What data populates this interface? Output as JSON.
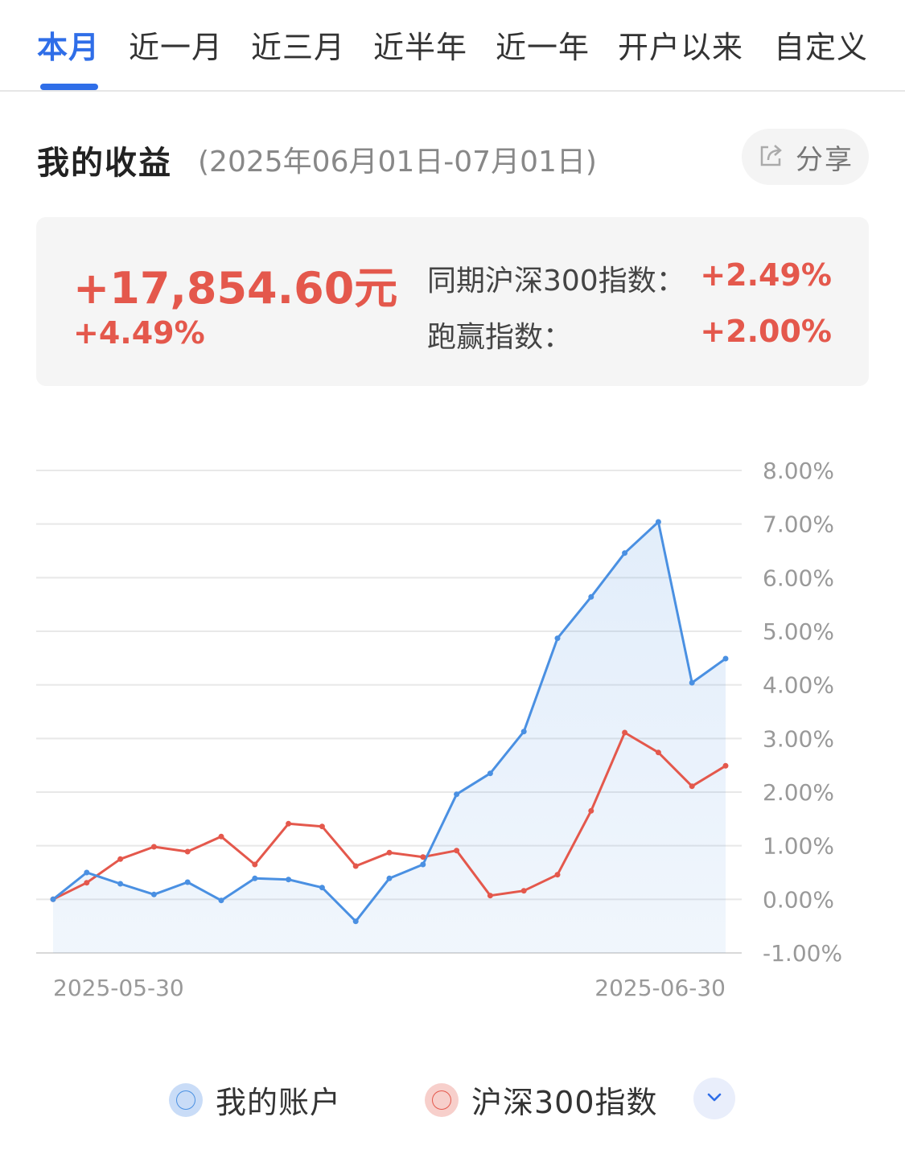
{
  "tabs": [
    {
      "label": "本月",
      "active": true
    },
    {
      "label": "近一月",
      "active": false
    },
    {
      "label": "近三月",
      "active": false
    },
    {
      "label": "近半年",
      "active": false
    },
    {
      "label": "近一年",
      "active": false
    },
    {
      "label": "开户以来",
      "active": false
    },
    {
      "label": "自定义",
      "active": false
    }
  ],
  "section": {
    "title": "我的收益",
    "date_range": "(2025年06月01日-07月01日)",
    "share_label": "分享",
    "share_icon": "share-icon"
  },
  "summary": {
    "profit_amount": "+17,854.60元",
    "profit_rate": "+4.49%",
    "index_label": "同期沪深300指数：",
    "index_value": "+2.49%",
    "outperform_label": "跑赢指数：",
    "outperform_value": "+2.00%"
  },
  "colors": {
    "accent": "#2f6ee8",
    "positive": "#e4584c",
    "account_line": "#4a90e2",
    "index_line": "#e4584c"
  },
  "chart_data": {
    "type": "line",
    "x_start_label": "2025-05-30",
    "x_end_label": "2025-06-30",
    "y_ticks": [
      "8.00%",
      "7.00%",
      "6.00%",
      "5.00%",
      "4.00%",
      "3.00%",
      "2.00%",
      "1.00%",
      "0.00%",
      "-1.00%"
    ],
    "ylim": [
      -1,
      8
    ],
    "series": [
      {
        "name": "我的账户",
        "color": "#4a90e2",
        "values": [
          0.0,
          0.5,
          0.29,
          0.09,
          0.32,
          -0.02,
          0.39,
          0.37,
          0.22,
          -0.41,
          0.39,
          0.65,
          1.96,
          2.35,
          3.13,
          4.87,
          5.64,
          6.46,
          7.04,
          4.04,
          4.49
        ]
      },
      {
        "name": "沪深300指数",
        "color": "#e4584c",
        "values": [
          0.0,
          0.31,
          0.75,
          0.98,
          0.89,
          1.17,
          0.65,
          1.41,
          1.36,
          0.62,
          0.87,
          0.79,
          0.91,
          0.07,
          0.16,
          0.46,
          1.65,
          3.11,
          2.74,
          2.11,
          2.49
        ]
      }
    ]
  },
  "legend": {
    "items": [
      {
        "label": "我的账户",
        "color": "#4a90e2"
      },
      {
        "label": "沪深300指数",
        "color": "#e4584c"
      }
    ],
    "expand_icon": "chevron-down-icon"
  }
}
